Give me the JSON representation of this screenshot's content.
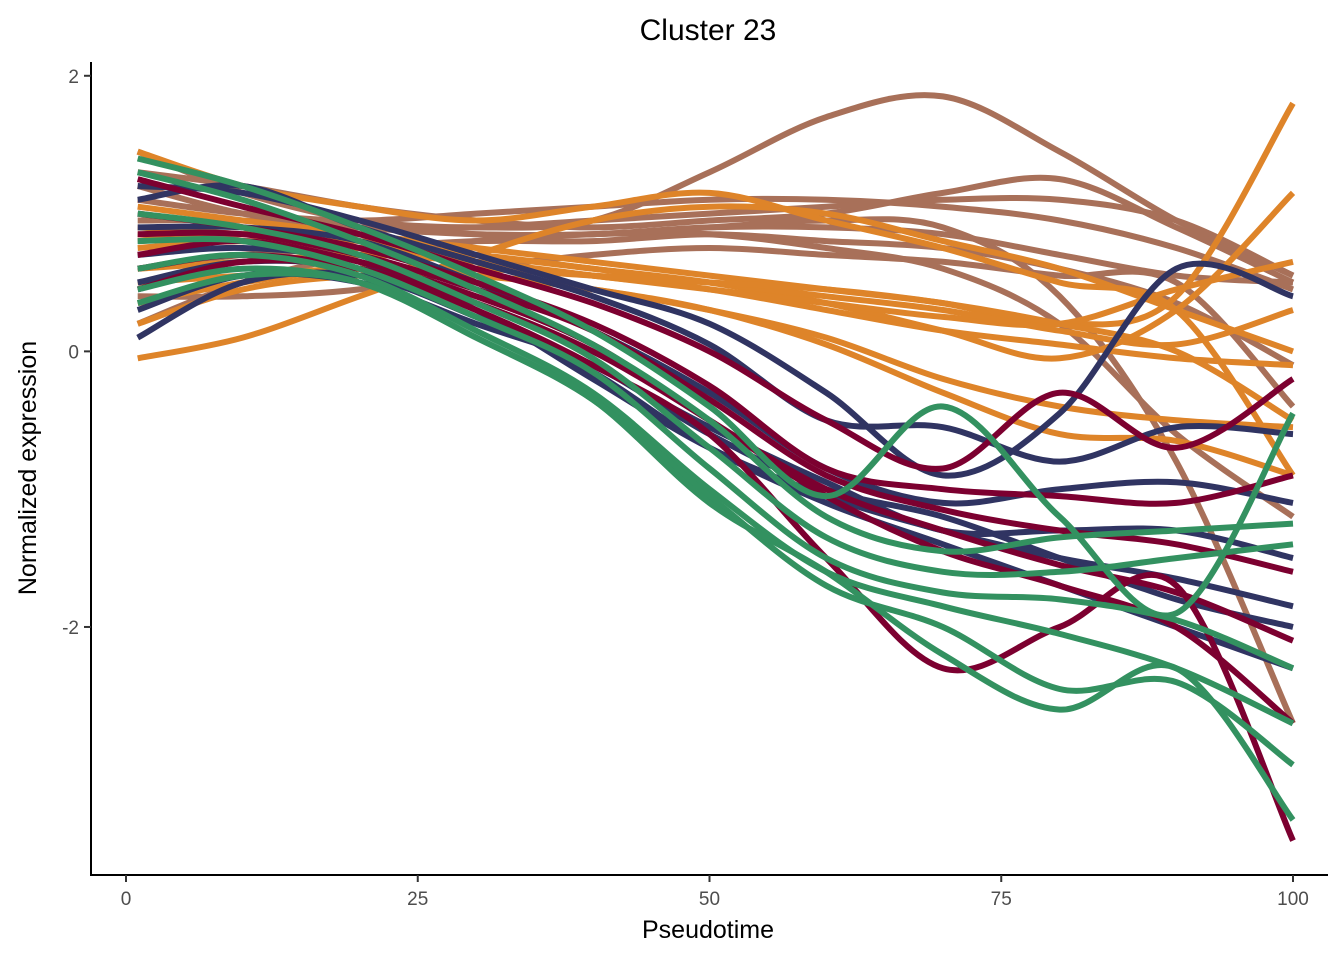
{
  "chart_data": {
    "type": "line",
    "title": "Cluster 23",
    "xlabel": "Pseudotime",
    "ylabel": "Normalized expression",
    "xlim": [
      -3,
      103
    ],
    "ylim": [
      -3.8,
      2.1
    ],
    "xticks": [
      {
        "value": 0,
        "label": "0"
      },
      {
        "value": 25,
        "label": "25"
      },
      {
        "value": 50,
        "label": "50"
      },
      {
        "value": 75,
        "label": "75"
      },
      {
        "value": 100,
        "label": "100"
      }
    ],
    "yticks": [
      {
        "value": 2,
        "label": "2"
      },
      {
        "value": 0,
        "label": "0"
      },
      {
        "value": -2,
        "label": "-2"
      }
    ],
    "grid": false,
    "legend": "none",
    "colors": {
      "brown": "#a87059",
      "orange": "#de8429",
      "navy": "#303462",
      "crimson": "#7c0030",
      "green": "#339160"
    },
    "x": [
      1,
      10,
      20,
      30,
      40,
      50,
      60,
      70,
      80,
      90,
      100
    ],
    "series": [
      {
        "color": "brown",
        "values": [
          1.45,
          1.15,
          0.95,
          0.9,
          0.95,
          1.3,
          1.7,
          1.85,
          1.45,
          0.95,
          0.55
        ]
      },
      {
        "color": "brown",
        "values": [
          1.3,
          1.2,
          1.05,
          0.95,
          0.9,
          0.95,
          1.0,
          1.15,
          1.25,
          0.9,
          0.5
        ]
      },
      {
        "color": "brown",
        "values": [
          1.1,
          1.0,
          0.95,
          1.0,
          1.05,
          1.1,
          1.1,
          1.05,
          0.95,
          0.75,
          0.45
        ]
      },
      {
        "color": "brown",
        "values": [
          0.95,
          0.95,
          0.9,
          0.9,
          0.95,
          1.0,
          1.05,
          1.1,
          1.1,
          0.95,
          0.55
        ]
      },
      {
        "color": "brown",
        "values": [
          0.8,
          0.85,
          0.9,
          0.85,
          0.85,
          0.9,
          0.9,
          0.85,
          0.7,
          0.55,
          0.5
        ]
      },
      {
        "color": "brown",
        "values": [
          0.6,
          0.7,
          0.75,
          0.8,
          0.8,
          0.85,
          0.8,
          0.75,
          0.6,
          0.35,
          -0.1
        ]
      },
      {
        "color": "brown",
        "values": [
          0.4,
          0.4,
          0.45,
          0.6,
          0.7,
          0.75,
          0.7,
          0.65,
          0.55,
          0.5,
          -0.4
        ]
      },
      {
        "color": "brown",
        "values": [
          0.2,
          0.5,
          0.7,
          0.8,
          0.85,
          0.85,
          0.75,
          0.6,
          0.2,
          -0.6,
          -1.2
        ]
      },
      {
        "color": "brown",
        "values": [
          1.2,
          1.0,
          0.9,
          0.85,
          0.85,
          0.9,
          0.95,
          0.9,
          0.4,
          -0.8,
          -2.7
        ]
      },
      {
        "color": "orange",
        "values": [
          -0.05,
          0.1,
          0.4,
          0.7,
          0.95,
          1.05,
          1.0,
          0.8,
          0.6,
          0.3,
          0.0
        ]
      },
      {
        "color": "orange",
        "values": [
          1.45,
          1.2,
          1.05,
          0.95,
          1.05,
          1.15,
          0.95,
          0.75,
          0.5,
          0.3,
          -0.9
        ]
      },
      {
        "color": "orange",
        "values": [
          1.05,
          0.95,
          0.85,
          0.75,
          0.65,
          0.55,
          0.45,
          0.35,
          0.2,
          0.4,
          1.8
        ]
      },
      {
        "color": "orange",
        "values": [
          0.9,
          0.85,
          0.8,
          0.7,
          0.6,
          0.5,
          0.35,
          0.15,
          -0.05,
          0.3,
          1.15
        ]
      },
      {
        "color": "orange",
        "values": [
          0.85,
          0.8,
          0.75,
          0.65,
          0.55,
          0.45,
          0.35,
          0.25,
          0.2,
          0.45,
          0.65
        ]
      },
      {
        "color": "orange",
        "values": [
          0.75,
          0.8,
          0.75,
          0.7,
          0.6,
          0.5,
          0.4,
          0.3,
          0.15,
          0.05,
          0.3
        ]
      },
      {
        "color": "orange",
        "values": [
          0.6,
          0.65,
          0.7,
          0.65,
          0.55,
          0.45,
          0.3,
          0.15,
          0.05,
          -0.05,
          -0.1
        ]
      },
      {
        "color": "orange",
        "values": [
          0.5,
          0.55,
          0.6,
          0.55,
          0.45,
          0.3,
          0.1,
          -0.2,
          -0.4,
          -0.5,
          -0.55
        ]
      },
      {
        "color": "orange",
        "values": [
          0.35,
          0.5,
          0.6,
          0.6,
          0.55,
          0.5,
          0.45,
          0.35,
          0.2,
          0.0,
          -0.5
        ]
      },
      {
        "color": "orange",
        "values": [
          0.2,
          0.45,
          0.55,
          0.55,
          0.45,
          0.3,
          0.05,
          -0.3,
          -0.6,
          -0.65,
          -0.9
        ]
      },
      {
        "color": "navy",
        "values": [
          1.2,
          1.15,
          0.95,
          0.7,
          0.45,
          0.2,
          -0.3,
          -0.9,
          -0.45,
          0.6,
          0.4
        ]
      },
      {
        "color": "navy",
        "values": [
          1.1,
          1.2,
          0.9,
          0.65,
          0.4,
          0.05,
          -0.5,
          -0.55,
          -0.8,
          -0.55,
          -0.6
        ]
      },
      {
        "color": "navy",
        "values": [
          0.9,
          0.9,
          0.8,
          0.5,
          0.15,
          -0.3,
          -0.85,
          -1.1,
          -1.0,
          -0.95,
          -1.1
        ]
      },
      {
        "color": "navy",
        "values": [
          0.7,
          0.75,
          0.65,
          0.3,
          -0.1,
          -0.55,
          -0.95,
          -1.3,
          -1.3,
          -1.3,
          -1.5
        ]
      },
      {
        "color": "navy",
        "values": [
          0.5,
          0.65,
          0.6,
          0.3,
          -0.2,
          -0.7,
          -1.05,
          -1.3,
          -1.5,
          -1.65,
          -1.85
        ]
      },
      {
        "color": "navy",
        "values": [
          0.3,
          0.55,
          0.5,
          0.2,
          -0.1,
          -0.6,
          -1.0,
          -1.2,
          -1.5,
          -1.8,
          -2.0
        ]
      },
      {
        "color": "navy",
        "values": [
          0.1,
          0.5,
          0.55,
          0.25,
          -0.15,
          -0.7,
          -1.1,
          -1.4,
          -1.7,
          -2.0,
          -2.3
        ]
      },
      {
        "color": "crimson",
        "values": [
          1.25,
          1.05,
          0.85,
          0.6,
          0.35,
          0.0,
          -0.5,
          -0.85,
          -0.3,
          -0.7,
          -0.2
        ]
      },
      {
        "color": "crimson",
        "values": [
          1.0,
          0.9,
          0.75,
          0.5,
          0.2,
          -0.25,
          -0.85,
          -1.0,
          -1.05,
          -1.1,
          -0.9
        ]
      },
      {
        "color": "crimson",
        "values": [
          0.85,
          0.85,
          0.7,
          0.45,
          0.15,
          -0.35,
          -0.9,
          -1.15,
          -1.3,
          -1.4,
          -1.6
        ]
      },
      {
        "color": "crimson",
        "values": [
          0.7,
          0.8,
          0.65,
          0.4,
          0.05,
          -0.5,
          -1.0,
          -1.3,
          -1.55,
          -1.75,
          -2.1
        ]
      },
      {
        "color": "crimson",
        "values": [
          0.6,
          0.7,
          0.6,
          0.35,
          0.0,
          -0.5,
          -1.05,
          -1.45,
          -1.7,
          -2.0,
          -2.7
        ]
      },
      {
        "color": "crimson",
        "values": [
          0.45,
          0.65,
          0.6,
          0.3,
          -0.1,
          -0.6,
          -1.5,
          -2.3,
          -2.0,
          -1.7,
          -3.55
        ]
      },
      {
        "color": "green",
        "values": [
          1.4,
          1.2,
          0.9,
          0.55,
          0.15,
          -0.4,
          -1.05,
          -0.4,
          -1.2,
          -1.9,
          -0.45
        ]
      },
      {
        "color": "green",
        "values": [
          1.3,
          1.1,
          0.8,
          0.45,
          0.05,
          -0.5,
          -1.2,
          -1.45,
          -1.35,
          -1.3,
          -1.25
        ]
      },
      {
        "color": "green",
        "values": [
          1.0,
          0.9,
          0.7,
          0.35,
          -0.05,
          -0.7,
          -1.35,
          -1.6,
          -1.6,
          -1.5,
          -1.4
        ]
      },
      {
        "color": "green",
        "values": [
          0.8,
          0.8,
          0.6,
          0.25,
          -0.15,
          -0.85,
          -1.5,
          -1.75,
          -1.8,
          -1.95,
          -2.3
        ]
      },
      {
        "color": "green",
        "values": [
          0.6,
          0.7,
          0.55,
          0.15,
          -0.3,
          -1.0,
          -1.6,
          -1.85,
          -2.05,
          -2.3,
          -2.7
        ]
      },
      {
        "color": "green",
        "values": [
          0.45,
          0.6,
          0.5,
          0.1,
          -0.35,
          -1.05,
          -1.7,
          -2.0,
          -2.45,
          -2.4,
          -3.0
        ]
      },
      {
        "color": "green",
        "values": [
          0.35,
          0.55,
          0.5,
          0.1,
          -0.35,
          -1.1,
          -1.6,
          -2.2,
          -2.6,
          -2.3,
          -3.4
        ]
      }
    ]
  }
}
